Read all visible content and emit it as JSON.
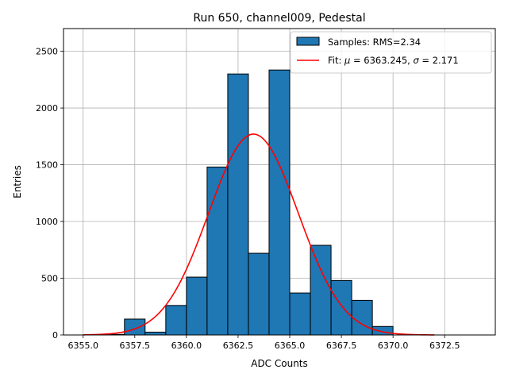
{
  "chart_data": {
    "type": "bar",
    "title": "Run 650, channel009, Pedestal",
    "xlabel": "ADC Counts",
    "ylabel": "Entries",
    "xlim": [
      6354.05,
      6374.95
    ],
    "ylim": [
      0,
      2700
    ],
    "grid": true,
    "legend_position": "top-right",
    "x_ticks": [
      "6355.0",
      "6357.5",
      "6360.0",
      "6362.5",
      "6365.0",
      "6367.5",
      "6370.0",
      "6372.5"
    ],
    "x_tick_values": [
      6355.0,
      6357.5,
      6360.0,
      6362.5,
      6365.0,
      6367.5,
      6370.0,
      6372.5
    ],
    "y_ticks": [
      "0",
      "500",
      "1000",
      "1500",
      "2000",
      "2500"
    ],
    "y_tick_values": [
      0,
      500,
      1000,
      1500,
      2000,
      2500
    ],
    "bin_width": 1,
    "bins": [
      {
        "x": 6356,
        "value": 5
      },
      {
        "x": 6357,
        "value": 140
      },
      {
        "x": 6358,
        "value": 25
      },
      {
        "x": 6359,
        "value": 260
      },
      {
        "x": 6360,
        "value": 510
      },
      {
        "x": 6361,
        "value": 1480
      },
      {
        "x": 6362,
        "value": 2300
      },
      {
        "x": 6363,
        "value": 720
      },
      {
        "x": 6364,
        "value": 2335
      },
      {
        "x": 6365,
        "value": 370
      },
      {
        "x": 6366,
        "value": 790
      },
      {
        "x": 6367,
        "value": 480
      },
      {
        "x": 6368,
        "value": 305
      },
      {
        "x": 6369,
        "value": 75
      }
    ],
    "series": [
      {
        "name": "Samples: RMS=2.34",
        "kind": "histogram",
        "color": "#1f77b4",
        "edge_color": "#000000"
      },
      {
        "name": "Fit: μ = 6363.245, σ = 2.171",
        "kind": "gaussian-fit",
        "color": "#ff0000",
        "mu": 6363.245,
        "sigma": 2.171,
        "amplitude": 1770,
        "x_range": [
          6355.0,
          6372.0
        ]
      }
    ],
    "legend": {
      "samples_label": "Samples: RMS=2.34",
      "fit_prefix": "Fit: ",
      "mu_symbol": "μ",
      "mu_text": " = 6363.245, ",
      "sigma_symbol": "σ",
      "sigma_text": " = 2.171"
    }
  }
}
